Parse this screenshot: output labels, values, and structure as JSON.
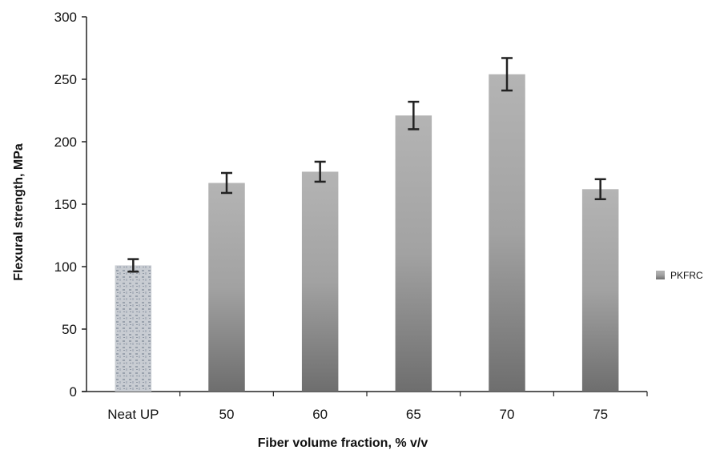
{
  "chart_data": {
    "type": "bar",
    "categories": [
      "Neat UP",
      "50",
      "60",
      "65",
      "70",
      "75"
    ],
    "series": [
      {
        "name": "PKFRC",
        "values": [
          101,
          167,
          176,
          221,
          254,
          162
        ],
        "errors": [
          5,
          8,
          8,
          11,
          13,
          8
        ]
      }
    ],
    "xlabel": "Fiber volume fraction, % v/v",
    "ylabel": "Flexural strength, MPa",
    "ylim": [
      0,
      300
    ],
    "yticks": [
      0,
      50,
      100,
      150,
      200,
      250,
      300
    ],
    "grid": false,
    "legend": "right",
    "colors": {
      "bar_light": "#b4b4b4",
      "bar_dark": "#6e6e6e",
      "neat_fill": "#c8ccd2",
      "axis": "#222222",
      "error_bar": "#222222"
    }
  }
}
